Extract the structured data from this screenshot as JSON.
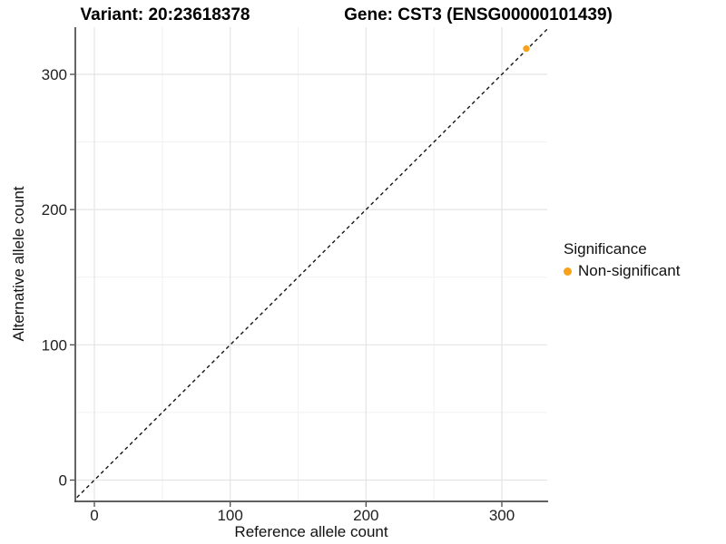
{
  "chart_data": {
    "type": "scatter",
    "title_variant": "Variant: 20:23618378",
    "title_gene": "Gene: CST3 (ENSG00000101439)",
    "xlabel": "Reference allele count",
    "ylabel": "Alternative allele count",
    "xlim": [
      -16,
      336
    ],
    "ylim": [
      -16,
      336
    ],
    "x_ticks": [
      0,
      100,
      200,
      300
    ],
    "y_ticks": [
      0,
      100,
      200,
      300
    ],
    "x_minor_ticks": [
      50,
      150,
      250
    ],
    "y_minor_ticks": [
      50,
      150,
      250
    ],
    "grid": "major and minor gridlines, light gray, white panel background",
    "reference_line": {
      "type": "abline",
      "slope": 1,
      "intercept": 0,
      "style": "dashed",
      "color": "#141414"
    },
    "series": [
      {
        "name": "Non-significant",
        "color": "#F9A11B",
        "points": [
          {
            "x": 318,
            "y": 319
          }
        ]
      }
    ],
    "legend": {
      "title": "Significance",
      "position": "right",
      "items": [
        {
          "label": "Non-significant",
          "color": "#F9A11B"
        }
      ]
    }
  }
}
